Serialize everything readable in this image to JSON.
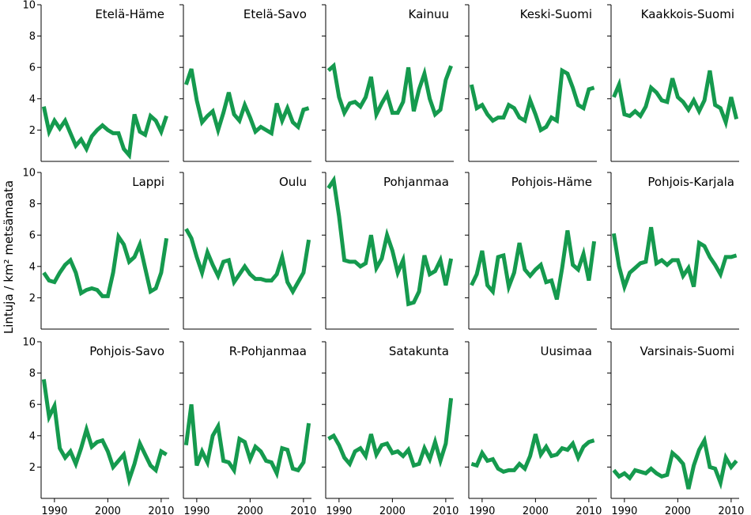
{
  "chart_data": {
    "type": "line",
    "ylabel": "Lintuja / km² metsämaata",
    "xlim": [
      1987.5,
      2011.5
    ],
    "ylim": [
      0,
      10
    ],
    "xticks": [
      1990,
      2000,
      2010
    ],
    "yticks": [
      2,
      4,
      6,
      8,
      10
    ],
    "x": [
      1988,
      1989,
      1990,
      1991,
      1992,
      1993,
      1994,
      1995,
      1996,
      1997,
      1998,
      1999,
      2000,
      2001,
      2002,
      2003,
      2004,
      2005,
      2006,
      2007,
      2008,
      2009,
      2010,
      2011
    ],
    "color": "#159a4e",
    "panels": [
      {
        "name": "Etelä-Häme",
        "values": [
          3.5,
          1.9,
          2.6,
          2.1,
          2.6,
          1.8,
          1.0,
          1.4,
          0.8,
          1.6,
          2.0,
          2.3,
          2.0,
          1.8,
          1.8,
          0.8,
          0.4,
          3.0,
          1.9,
          1.7,
          2.9,
          2.6,
          1.9,
          2.9
        ]
      },
      {
        "name": "Etelä-Savo",
        "values": [
          4.9,
          5.9,
          3.9,
          2.5,
          2.9,
          3.2,
          2.0,
          3.1,
          4.4,
          3.0,
          2.6,
          3.6,
          2.8,
          1.9,
          2.2,
          2.0,
          1.8,
          3.7,
          2.6,
          3.4,
          2.5,
          2.2,
          3.3,
          3.4
        ]
      },
      {
        "name": "Kainuu",
        "values": [
          5.8,
          6.1,
          4.1,
          3.1,
          3.7,
          3.8,
          3.5,
          4.1,
          5.4,
          3.0,
          3.7,
          4.3,
          3.1,
          3.1,
          3.8,
          6.0,
          3.2,
          4.6,
          5.6,
          4.0,
          3.0,
          3.3,
          5.2,
          6.1
        ]
      },
      {
        "name": "Keski-Suomi",
        "values": [
          4.9,
          3.4,
          3.6,
          3.0,
          2.6,
          2.8,
          2.8,
          3.6,
          3.4,
          2.8,
          2.6,
          3.9,
          3.0,
          2.0,
          2.2,
          2.8,
          2.6,
          5.8,
          5.6,
          4.7,
          3.6,
          3.4,
          4.6,
          4.7
        ]
      },
      {
        "name": "Kaakkois-Suomi",
        "values": [
          4.1,
          4.9,
          3.0,
          2.9,
          3.2,
          2.9,
          3.5,
          4.7,
          4.4,
          3.9,
          3.8,
          5.3,
          4.1,
          3.8,
          3.3,
          3.9,
          3.2,
          3.9,
          5.8,
          3.6,
          3.4,
          2.5,
          4.1,
          2.7
        ]
      },
      {
        "name": "Lappi",
        "values": [
          3.6,
          3.1,
          3.0,
          3.6,
          4.1,
          4.4,
          3.6,
          2.3,
          2.5,
          2.6,
          2.5,
          2.1,
          2.1,
          3.6,
          5.9,
          5.4,
          4.3,
          4.6,
          5.4,
          3.9,
          2.4,
          2.6,
          3.6,
          5.8
        ]
      },
      {
        "name": "Oulu",
        "values": [
          6.4,
          5.8,
          4.6,
          3.6,
          4.9,
          4.1,
          3.4,
          4.3,
          4.4,
          3.0,
          3.5,
          4.0,
          3.5,
          3.2,
          3.2,
          3.1,
          3.1,
          3.5,
          4.6,
          3.0,
          2.4,
          3.0,
          3.6,
          5.7
        ]
      },
      {
        "name": "Pohjanmaa",
        "values": [
          9.0,
          9.5,
          7.2,
          4.4,
          4.3,
          4.3,
          4.0,
          4.2,
          6.0,
          3.9,
          4.5,
          6.0,
          5.0,
          3.6,
          4.4,
          1.6,
          1.7,
          2.4,
          4.7,
          3.5,
          3.7,
          4.4,
          2.8,
          4.5
        ]
      },
      {
        "name": "Pohjois-Häme",
        "values": [
          2.8,
          3.5,
          5.0,
          2.8,
          2.4,
          4.6,
          4.7,
          2.7,
          3.6,
          5.5,
          3.8,
          3.4,
          3.8,
          4.1,
          3.0,
          3.1,
          1.9,
          3.9,
          6.3,
          4.1,
          3.8,
          4.8,
          3.1,
          5.6
        ]
      },
      {
        "name": "Pohjois-Karjala",
        "values": [
          6.1,
          4.0,
          2.7,
          3.6,
          3.9,
          4.2,
          4.3,
          6.5,
          4.2,
          4.4,
          4.1,
          4.4,
          4.4,
          3.4,
          3.9,
          2.7,
          5.5,
          5.3,
          4.6,
          4.1,
          3.5,
          4.6,
          4.6,
          4.7
        ]
      },
      {
        "name": "Pohjois-Savo",
        "values": [
          7.6,
          5.2,
          5.9,
          3.2,
          2.6,
          3.0,
          2.2,
          3.2,
          4.4,
          3.3,
          3.6,
          3.7,
          3.0,
          2.0,
          2.4,
          2.8,
          1.2,
          2.2,
          3.5,
          2.8,
          2.1,
          1.8,
          3.0,
          2.8
        ]
      },
      {
        "name": "R-Pohjanmaa",
        "values": [
          3.4,
          6.0,
          2.1,
          3.0,
          2.3,
          4.0,
          4.6,
          2.4,
          2.3,
          1.8,
          3.8,
          3.6,
          2.5,
          3.3,
          3.0,
          2.4,
          2.3,
          1.6,
          3.2,
          3.1,
          1.9,
          1.8,
          2.3,
          4.8
        ]
      },
      {
        "name": "Satakunta",
        "values": [
          3.8,
          4.0,
          3.4,
          2.6,
          2.2,
          3.0,
          3.2,
          2.7,
          4.1,
          2.8,
          3.4,
          3.5,
          2.9,
          3.0,
          2.7,
          3.1,
          2.1,
          2.2,
          3.2,
          2.5,
          3.6,
          2.4,
          3.5,
          6.4
        ]
      },
      {
        "name": "Uusimaa",
        "values": [
          2.2,
          2.1,
          2.9,
          2.4,
          2.5,
          1.9,
          1.7,
          1.8,
          1.8,
          2.2,
          1.9,
          2.7,
          4.1,
          2.8,
          3.3,
          2.7,
          2.8,
          3.2,
          3.1,
          3.5,
          2.6,
          3.3,
          3.6,
          3.7
        ]
      },
      {
        "name": "Varsinais-Suomi",
        "values": [
          1.8,
          1.4,
          1.6,
          1.3,
          1.8,
          1.7,
          1.6,
          1.9,
          1.6,
          1.4,
          1.5,
          2.9,
          2.6,
          2.2,
          0.6,
          2.1,
          3.1,
          3.7,
          2.0,
          1.9,
          1.0,
          2.6,
          2.0,
          2.4
        ]
      }
    ]
  }
}
